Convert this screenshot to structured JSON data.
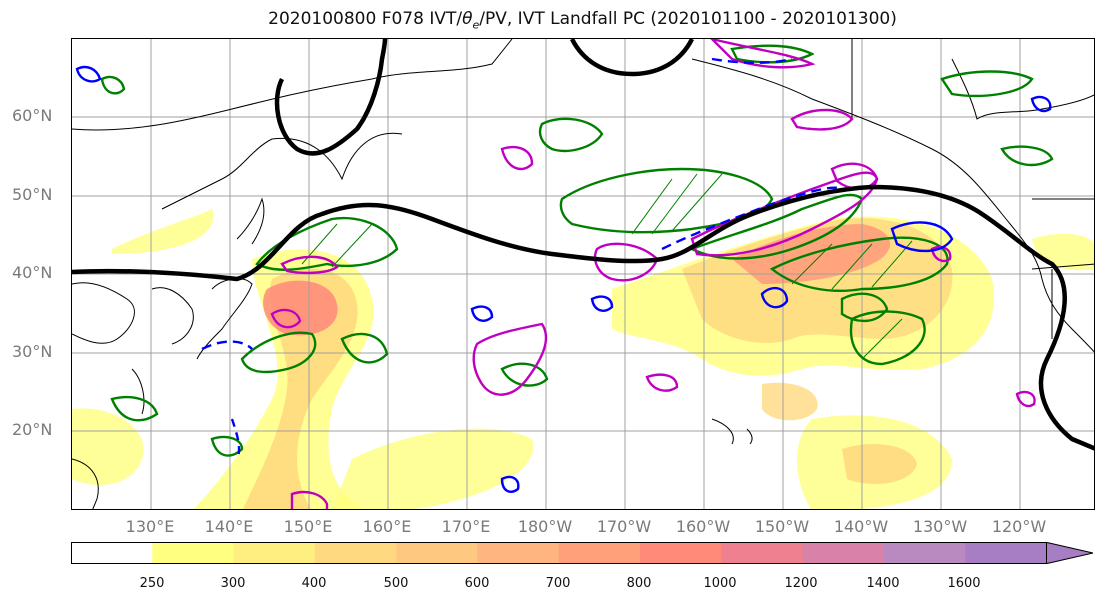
{
  "title_parts": {
    "prefix": "2020100800 F078 IVT/",
    "theta": "θ",
    "theta_sub": "e",
    "suffix": "/PV, IVT Landfall PC (2020101100 - 2020101300)"
  },
  "lat_labels": [
    "60°N",
    "50°N",
    "40°N",
    "30°N",
    "20°N"
  ],
  "lon_labels": [
    "130°E",
    "140°E",
    "150°E",
    "160°E",
    "170°E",
    "180°W",
    "170°W",
    "160°W",
    "150°W",
    "140°W",
    "130°W",
    "120°W"
  ],
  "colorbar": {
    "levels": [
      "250",
      "300",
      "400",
      "500",
      "600",
      "700",
      "800",
      "1000",
      "1200",
      "1400",
      "1600"
    ],
    "colors": [
      "#ffffff",
      "#ffff80",
      "#ffee80",
      "#ffd980",
      "#ffc880",
      "#ffb580",
      "#ffa07a",
      "#ff8a7a",
      "#ee8090",
      "#d882a8",
      "#b88ac0",
      "#a77dc4"
    ]
  },
  "colors": {
    "jet_contour": "#000000",
    "pv_contour": "#008000",
    "theta_contour_positive": "#0000ff",
    "ivt_pc_contour": "#c000c0"
  }
}
